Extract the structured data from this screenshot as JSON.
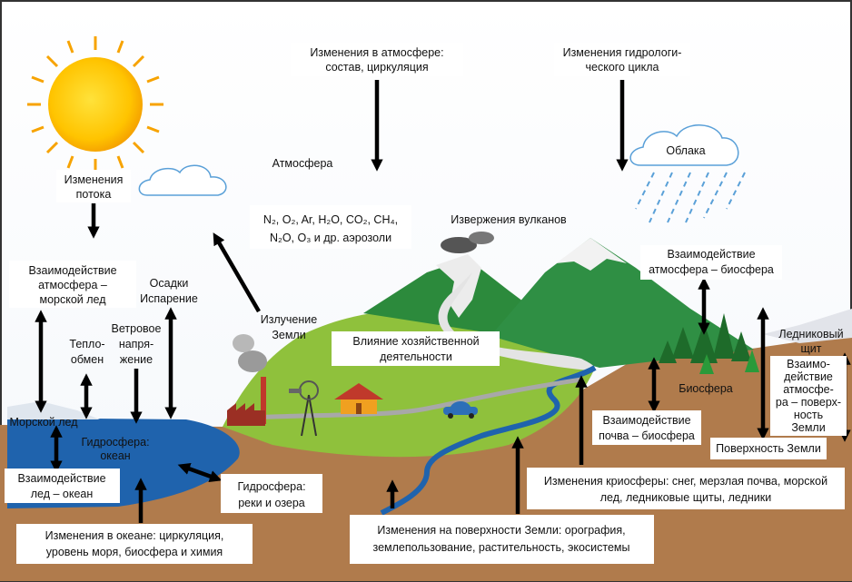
{
  "labels": {
    "atmosphere_changes": [
      "Изменения в атмосфере:",
      "состав, циркуляция"
    ],
    "hydro_changes": [
      "Изменения гидрологи-",
      "ческого цикла"
    ],
    "clouds": [
      "Облака"
    ],
    "atmosphere": [
      "Атмосфера"
    ],
    "composition": [
      "N₂, O₂, Ar, H₂O, CO₂, CH₄,",
      "N₂O, O₃ и др. аэрозоли"
    ],
    "flux_changes": [
      "Изменения",
      "потока"
    ],
    "volcanoes": [
      "Извержения вулканов"
    ],
    "atm_bio": [
      "Взаимодействие",
      "атмосфера – биосфера"
    ],
    "atm_seaice": [
      "Взаимодействие",
      "атмосфера –",
      "морской лед"
    ],
    "precip": [
      "Осадки",
      "Испарение"
    ],
    "wind": [
      "Ветровое",
      "напря-",
      "жение"
    ],
    "radiation": [
      "Излучение",
      "Земли"
    ],
    "heat": [
      "Тепло-",
      "обмен"
    ],
    "human": [
      "Влияние хозяйственной",
      "деятельности"
    ],
    "ice_sheet": [
      "Ледниковый",
      "щит"
    ],
    "atm_surface": [
      "Взаимо-",
      "действие",
      "атмосфе-",
      "ра – поверх-",
      "ность",
      "Земли"
    ],
    "biosphere": [
      "Биосфера"
    ],
    "sea_ice": [
      "Морской лед"
    ],
    "ocean": [
      "Гидросфера:",
      "океан"
    ],
    "soil_bio": [
      "Взаимодействие",
      "почва – биосфера"
    ],
    "land_surface": [
      "Поверхность Земли"
    ],
    "ice_ocean": [
      "Взаимодействие",
      "лед – океан"
    ],
    "rivers": [
      "Гидросфера:",
      "реки и озера"
    ],
    "cryo_changes": [
      "Изменения криосферы: снег, мерзлая почва, морской",
      "лед, ледниковые щиты, ледники"
    ],
    "ocean_changes": [
      "Изменения в океане: циркуляция,",
      "уровень моря, биосфера и химия"
    ],
    "surface_changes": [
      "Изменения на поверхности Земли: орография,",
      "землепользование, растительность, экосистемы"
    ]
  }
}
